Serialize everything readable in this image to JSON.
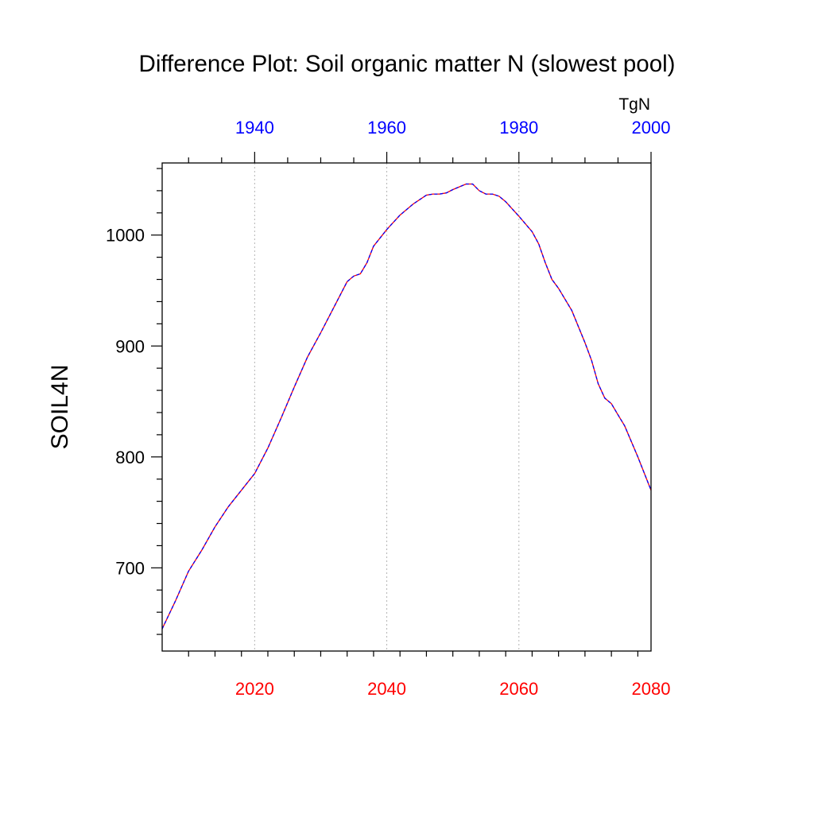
{
  "chart_data": {
    "type": "line",
    "title": "Difference Plot: Soil organic matter N (slowest pool)",
    "ylabel": "SOIL4N",
    "units": "TgN",
    "colors": {
      "bottom_axis": "#ff0000",
      "top_axis": "#0000ff",
      "series_a": "#ff0000",
      "series_b": "#0000ff",
      "grid": "#b4b4b4",
      "frame": "#000000"
    },
    "grid": "vertical dotted at bottom-axis major ticks",
    "x_bottom": {
      "range": [
        2006,
        2080
      ],
      "major_ticks": [
        2020,
        2040,
        2060,
        2080
      ],
      "minor_step": 4
    },
    "x_top": {
      "range": [
        1926,
        2000
      ],
      "major_ticks": [
        1940,
        1960,
        1980,
        2000
      ],
      "minor_step": 5,
      "tick_offset": 4
    },
    "ylim": [
      625,
      1065
    ],
    "y_major_ticks": [
      700,
      800,
      900,
      1000
    ],
    "y_minor_step": 20,
    "series": [
      {
        "x": [
          2006,
          2008,
          2010,
          2012,
          2014,
          2016,
          2018,
          2020,
          2022,
          2024,
          2026,
          2028,
          2030,
          2032,
          2034,
          2035,
          2036,
          2037,
          2038,
          2040,
          2042,
          2044,
          2046,
          2047,
          2048,
          2049,
          2050,
          2052,
          2053,
          2054,
          2055,
          2056,
          2057,
          2058,
          2060,
          2062,
          2063,
          2064,
          2065,
          2066,
          2068,
          2070,
          2071,
          2072,
          2073,
          2074,
          2075,
          2076,
          2078,
          2080
        ],
        "values": [
          645,
          670,
          697,
          716,
          737,
          755,
          770,
          785,
          808,
          835,
          863,
          890,
          912,
          935,
          958,
          963,
          965,
          975,
          990,
          1005,
          1018,
          1028,
          1036,
          1037,
          1037,
          1038,
          1041,
          1046,
          1046,
          1040,
          1037,
          1037,
          1035,
          1030,
          1017,
          1003,
          992,
          975,
          960,
          952,
          932,
          903,
          887,
          866,
          853,
          848,
          838,
          828,
          800,
          770
        ]
      }
    ]
  }
}
